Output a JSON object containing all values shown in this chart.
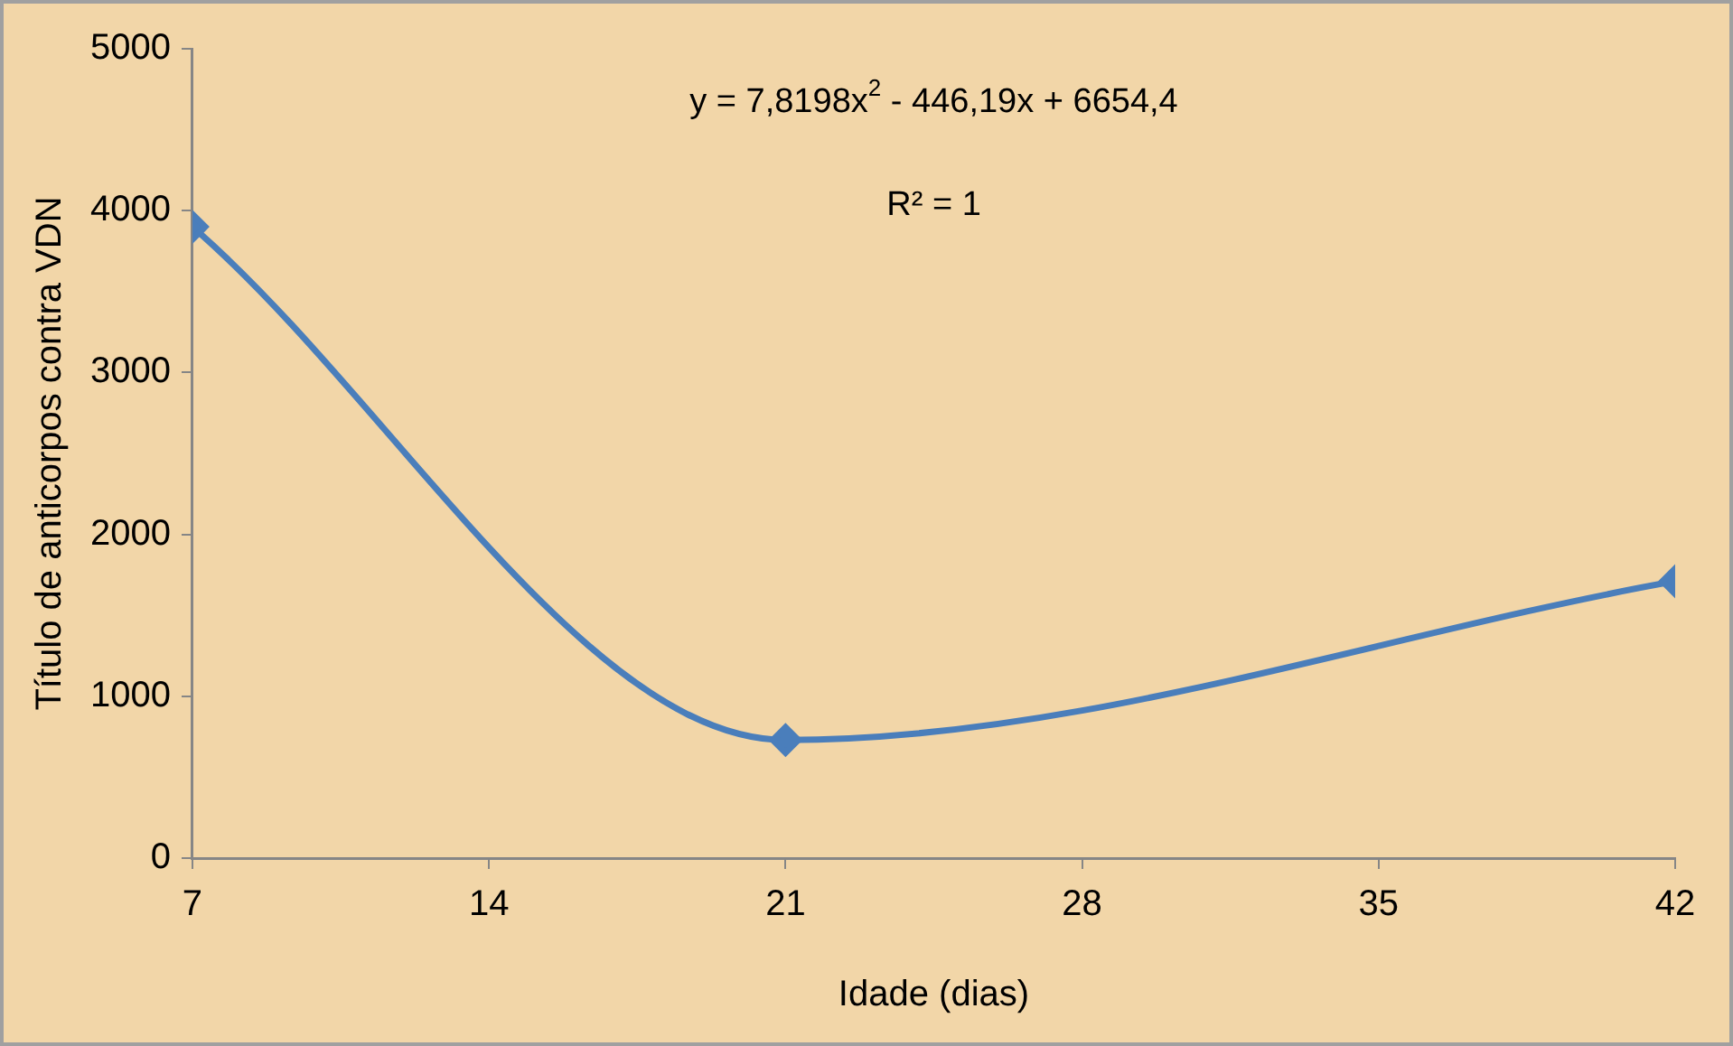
{
  "chart_data": {
    "type": "line",
    "xlabel": "Idade (dias)",
    "ylabel": "Título de anticorpos contra VDN",
    "x": [
      7,
      21,
      42
    ],
    "series": [
      {
        "color": "#4a7ebb",
        "values": [
          3900,
          730,
          1710
        ]
      }
    ],
    "xlim": [
      7,
      42
    ],
    "xticks": [
      7,
      14,
      21,
      28,
      35,
      42
    ],
    "ylim": [
      0,
      5000
    ],
    "yticks": [
      0,
      1000,
      2000,
      3000,
      4000,
      5000
    ],
    "grid": false,
    "legend": false,
    "marker": "diamond",
    "line_style": "solid",
    "annotations": [
      "y = 7,8198x$^{2}$ - 446,19x + 6654,4",
      "R² = 1"
    ]
  }
}
